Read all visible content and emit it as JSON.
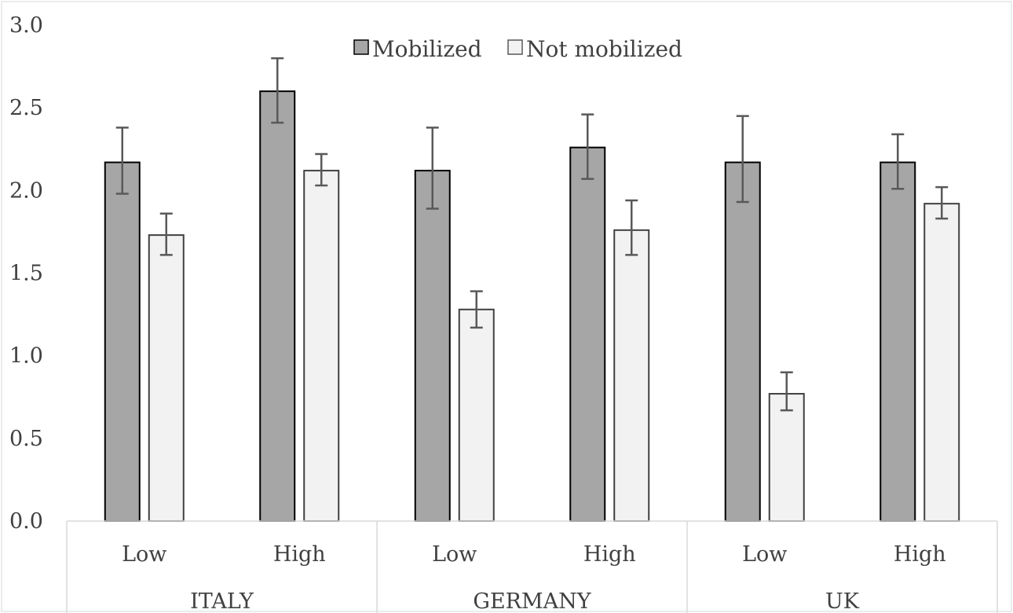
{
  "chart_data": {
    "type": "bar",
    "title": "",
    "xlabel": "",
    "ylabel": "",
    "ylim": [
      0,
      3.0
    ],
    "yticks": [
      "0.0",
      "0.5",
      "1.0",
      "1.5",
      "2.0",
      "2.5",
      "3.0"
    ],
    "grid": false,
    "legend_position": "top-center",
    "groups": [
      {
        "label": "ITALY",
        "categories": [
          "Low",
          "High"
        ]
      },
      {
        "label": "GERMANY",
        "categories": [
          "Low",
          "High"
        ]
      },
      {
        "label": "UK",
        "categories": [
          "Low",
          "High"
        ]
      }
    ],
    "series": [
      {
        "name": "Mobilized",
        "color": "#a6a6a6",
        "values": [
          2.17,
          2.6,
          2.12,
          2.26,
          2.17,
          2.17
        ],
        "error_low": [
          1.98,
          2.41,
          1.89,
          2.07,
          1.93,
          2.01
        ],
        "error_high": [
          2.38,
          2.8,
          2.38,
          2.46,
          2.45,
          2.34
        ]
      },
      {
        "name": "Not mobilized",
        "color": "#f2f2f2",
        "values": [
          1.73,
          2.12,
          1.28,
          1.76,
          0.77,
          1.92
        ],
        "error_low": [
          1.61,
          2.03,
          1.17,
          1.61,
          0.67,
          1.83
        ],
        "error_high": [
          1.86,
          2.22,
          1.39,
          1.94,
          0.9,
          2.02
        ]
      }
    ]
  }
}
